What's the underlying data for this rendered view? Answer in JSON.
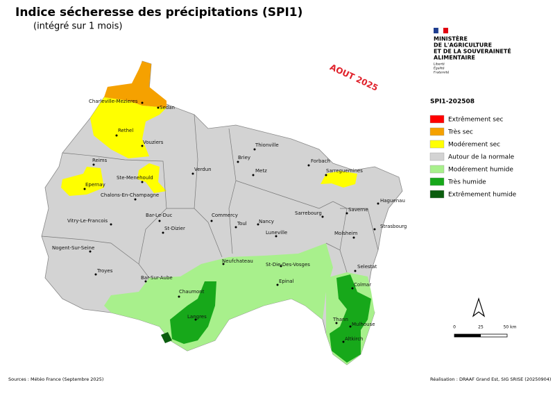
{
  "header": {
    "title": "Indice sécheresse des précipitations (SPI1)",
    "subtitle": "(intégré sur 1 mois)"
  },
  "stamp": "AOUT 2025",
  "logo": {
    "lines": [
      "MINISTÈRE",
      "DE L'AGRICULTURE",
      "ET DE LA SOUVERAINETÉ",
      "ALIMENTAIRE"
    ],
    "motto": [
      "Liberté",
      "Égalité",
      "Fraternité"
    ]
  },
  "legend": {
    "title": "SPI1-202508",
    "items": [
      {
        "label": "Extrêmement sec",
        "color": "#ff0000"
      },
      {
        "label": "Très sec",
        "color": "#f5a100"
      },
      {
        "label": "Modérement sec",
        "color": "#ffff00"
      },
      {
        "label": "Autour de la normale",
        "color": "#d3d3d3"
      },
      {
        "label": "Modérement humide",
        "color": "#a8f08c"
      },
      {
        "label": "Très humide",
        "color": "#17a81a"
      },
      {
        "label": "Extrêmement humide",
        "color": "#0b5d0e"
      }
    ]
  },
  "cities": [
    "Charleville-Mezieres",
    "Sedan",
    "Rethel",
    "Vouziers",
    "Reims",
    "Epernay",
    "Ste-Menehould",
    "Chalons-En-Champagne",
    "Verdun",
    "Thionville",
    "Briey",
    "Metz",
    "Forbach",
    "Sarreguemines",
    "Haguenau",
    "Saverne",
    "Sarrebourg",
    "Bar-Le-Duc",
    "Commercy",
    "Toul",
    "Nancy",
    "Luneville",
    "Strasbourg",
    "Molsheim",
    "Vitry-Le-Francois",
    "St-Dizier",
    "Nogent-Sur-Seine",
    "Troyes",
    "Bar-Sur-Aube",
    "Chaumont",
    "Neufchateau",
    "St-Die-Des-Vosges",
    "Epinal",
    "Selestat",
    "Colmar",
    "Langres",
    "Thann",
    "Mulhouse",
    "Altkirch"
  ],
  "scale": [
    "0",
    "25",
    "50 km"
  ],
  "footer": {
    "source": "Sources : Météo France (Septembre 2025)",
    "credit": "Réalisation : DRAAF Grand Est, SIG SRISE (20250904)"
  }
}
